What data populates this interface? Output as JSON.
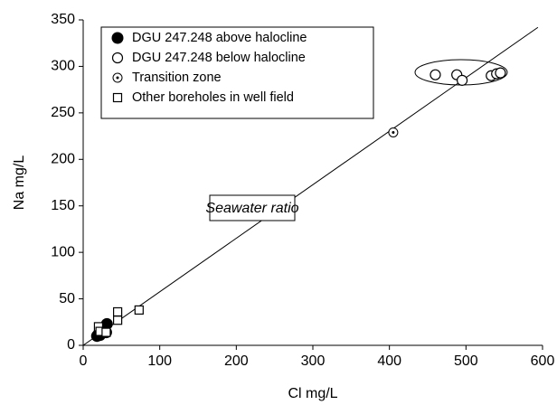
{
  "chart_data": {
    "type": "scatter",
    "x_label": "Cl mg/L",
    "y_label": "Na mg/L",
    "xlim": [
      0,
      600
    ],
    "ylim": [
      0,
      350
    ],
    "xticks": [
      0,
      100,
      200,
      300,
      400,
      500,
      600
    ],
    "yticks": [
      0,
      50,
      100,
      150,
      200,
      250,
      300,
      350
    ],
    "series": [
      {
        "name": "DGU 247.248 above halocline",
        "marker": "filled-circle",
        "color": "#000000",
        "x": [
          18,
          20,
          22,
          30,
          31
        ],
        "values": [
          10,
          12,
          11,
          14,
          23
        ]
      },
      {
        "name": "DGU 247.248 below halocline",
        "marker": "open-circle",
        "color": "#000000",
        "x": [
          460,
          488,
          495,
          533,
          540,
          545
        ],
        "values": [
          291,
          291,
          285,
          290,
          292,
          293
        ]
      },
      {
        "name": "Transition zone",
        "marker": "dot-circle",
        "color": "#000000",
        "x": [
          405
        ],
        "values": [
          229
        ]
      },
      {
        "name": "Other boreholes in well field",
        "marker": "open-square",
        "color": "#000000",
        "x": [
          20,
          22,
          30,
          45,
          45,
          73
        ],
        "values": [
          20,
          15,
          14,
          36,
          27,
          38
        ]
      }
    ],
    "reference_line": {
      "label": "Seawater ratio",
      "x": [
        0,
        594
      ],
      "values": [
        0,
        342
      ]
    }
  }
}
